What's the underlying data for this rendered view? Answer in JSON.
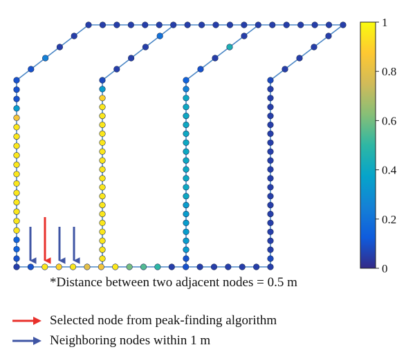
{
  "note": "*Distance between two adjacent nodes = 0.5 m",
  "legend": [
    {
      "label": "Selected node from peak-finding algorithm",
      "color": "#e8302b"
    },
    {
      "label": "Neighboring nodes within 1 m",
      "color": "#3f55a4"
    }
  ],
  "colorbar": {
    "ticks": [
      "1",
      "0.8",
      "0.6",
      "0.4",
      "0.2",
      "0"
    ],
    "colormap": "parula"
  },
  "chart_data": {
    "type": "node-network",
    "value_range": [
      0,
      1
    ],
    "node_spacing_m": 0.5,
    "walls": [
      {
        "id": "left-wall",
        "top_values": [
          0.1,
          0.1,
          0.1,
          0.35
        ],
        "values": [
          0.1,
          0.1,
          0.1,
          0.35,
          0.85,
          0.95,
          0.95,
          0.95,
          0.95,
          0.95,
          0.95,
          0.95,
          0.95,
          0.95,
          0.95,
          0.95,
          0.95,
          0.15,
          0.15,
          0.1
        ]
      },
      {
        "id": "wall-2",
        "values": [
          0.08,
          0.35,
          0.9,
          0.95,
          0.95,
          0.95,
          0.95,
          0.95,
          0.95,
          0.95,
          0.95,
          0.95,
          0.95,
          0.95,
          0.95,
          0.95,
          0.95,
          0.95,
          0.95,
          0.95,
          0.95
        ]
      },
      {
        "id": "wall-3",
        "values": [
          0.15,
          0.25,
          0.4,
          0.4,
          0.4,
          0.4,
          0.4,
          0.4,
          0.4,
          0.4,
          0.4,
          0.4,
          0.4,
          0.4,
          0.35,
          0.35,
          0.35,
          0.35,
          0.35,
          0.35,
          0.1
        ]
      },
      {
        "id": "wall-4",
        "values": [
          0.08,
          0.05,
          0.05,
          0.05,
          0.05,
          0.05,
          0.05,
          0.05,
          0.05,
          0.05,
          0.05,
          0.05,
          0.05,
          0.05,
          0.05,
          0.05,
          0.05,
          0.05,
          0.05,
          0.05,
          0.08
        ]
      }
    ],
    "bottom_row_values": [
      0.05,
      0.1,
      0.95,
      0.9,
      0.95,
      0.8,
      0.85,
      0.95,
      0.6,
      0.55,
      0.5,
      0.05,
      0.1,
      0.05,
      0.05,
      0.05,
      0.05,
      0.05,
      0.05
    ],
    "top_row_values": [
      0.05,
      0.05,
      0.05,
      0.05,
      0.05,
      0.05,
      0.05,
      0.05,
      0.05,
      0.05,
      0.05,
      0.05,
      0.05,
      0.05,
      0.05,
      0.05,
      0.05,
      0.05,
      0.05
    ],
    "selected_node_index": 2,
    "neighbor_node_indices": [
      1,
      3,
      4
    ]
  }
}
